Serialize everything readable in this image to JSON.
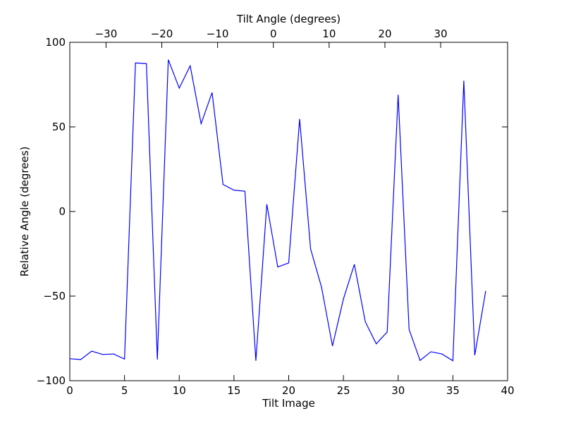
{
  "chart_data": {
    "type": "line",
    "title": "",
    "xlabel": "Tilt Image",
    "ylabel": "Relative Angle (degrees)",
    "top_xlabel": "Tilt Angle (degrees)",
    "xlim": [
      0,
      40
    ],
    "ylim": [
      -100,
      100
    ],
    "top_xlim": [
      -36.5,
      42
    ],
    "x_ticks": [
      0,
      5,
      10,
      15,
      20,
      25,
      30,
      35,
      40
    ],
    "x_tick_labels": [
      "0",
      "5",
      "10",
      "15",
      "20",
      "25",
      "30",
      "35",
      "40"
    ],
    "y_ticks": [
      -100,
      -50,
      0,
      50,
      100
    ],
    "y_tick_labels": [
      "−100",
      "−50",
      "0",
      "50",
      "100"
    ],
    "top_x_ticks": [
      -30,
      -20,
      -10,
      0,
      10,
      20,
      30
    ],
    "top_x_tick_labels": [
      "−30",
      "−20",
      "−10",
      "0",
      "10",
      "20",
      "30"
    ],
    "grid": false,
    "series": [
      {
        "color": "#0000ff",
        "x": [
          0,
          1,
          2,
          3,
          4,
          5,
          6,
          7,
          8,
          9,
          10,
          11,
          12,
          13,
          14,
          15,
          16,
          17,
          18,
          19,
          20,
          21,
          22,
          23,
          24,
          25,
          26,
          27,
          28,
          29,
          30,
          31,
          32,
          33,
          34,
          35,
          36,
          37,
          38
        ],
        "y": [
          -87,
          -87.5,
          -82.5,
          -84.5,
          -84.2,
          -87.2,
          87.8,
          87.4,
          -87.5,
          89.7,
          72.9,
          86.1,
          51.9,
          70.3,
          16,
          12.6,
          12,
          -88.2,
          4.3,
          -32.8,
          -30.4,
          54.7,
          -22.1,
          -44.7,
          -79.5,
          -51.7,
          -31.2,
          -65.2,
          -78.2,
          -71.2,
          69,
          -69.7,
          -88,
          -82.9,
          -84.2,
          -88.2,
          77.3,
          -85,
          -46.9
        ]
      }
    ]
  }
}
